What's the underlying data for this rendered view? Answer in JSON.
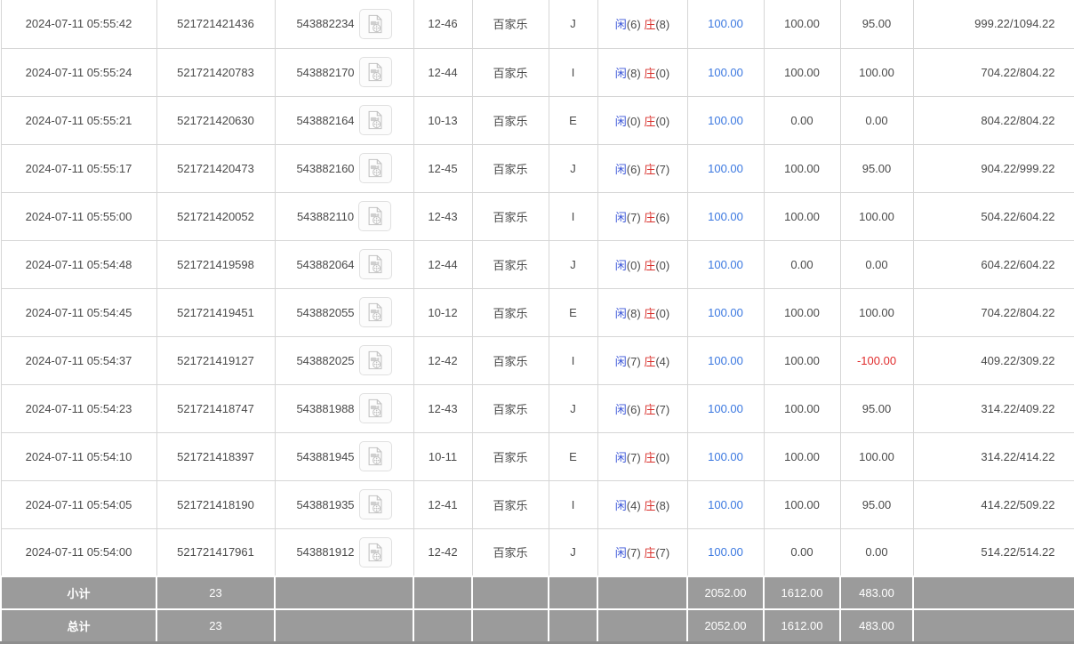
{
  "colors": {
    "text": "#4a4a4a",
    "border": "#d6d6d6",
    "bet_amount_blue": "#3b78e0",
    "player_blue": "#3b56d8",
    "banker_red": "#d9302c",
    "loss_red": "#e02b2b",
    "summary_bg": "#9b9b9b",
    "summary_text": "#ffffff"
  },
  "table": {
    "game_label": "百家乐",
    "result_labels": {
      "player": "闲",
      "banker": "庄"
    },
    "video_icon": "video-file-icon",
    "rows": [
      {
        "time": "2024-07-11 05:55:42",
        "bet_id": "521721421436",
        "round_id": "543882234",
        "table_code": "12-46",
        "game": "百家乐",
        "room": "J",
        "player_points": "(6)",
        "banker_points": "(8)",
        "bet_amount": "100.00",
        "valid_amount": "100.00",
        "win_loss": "95.00",
        "balance": "999.22/1094.22"
      },
      {
        "time": "2024-07-11 05:55:24",
        "bet_id": "521721420783",
        "round_id": "543882170",
        "table_code": "12-44",
        "game": "百家乐",
        "room": "I",
        "player_points": "(8)",
        "banker_points": "(0)",
        "bet_amount": "100.00",
        "valid_amount": "100.00",
        "win_loss": "100.00",
        "balance": "704.22/804.22"
      },
      {
        "time": "2024-07-11 05:55:21",
        "bet_id": "521721420630",
        "round_id": "543882164",
        "table_code": "10-13",
        "game": "百家乐",
        "room": "E",
        "player_points": "(0)",
        "banker_points": "(0)",
        "bet_amount": "100.00",
        "valid_amount": "0.00",
        "win_loss": "0.00",
        "balance": "804.22/804.22"
      },
      {
        "time": "2024-07-11 05:55:17",
        "bet_id": "521721420473",
        "round_id": "543882160",
        "table_code": "12-45",
        "game": "百家乐",
        "room": "J",
        "player_points": "(6)",
        "banker_points": "(7)",
        "bet_amount": "100.00",
        "valid_amount": "100.00",
        "win_loss": "95.00",
        "balance": "904.22/999.22"
      },
      {
        "time": "2024-07-11 05:55:00",
        "bet_id": "521721420052",
        "round_id": "543882110",
        "table_code": "12-43",
        "game": "百家乐",
        "room": "I",
        "player_points": "(7)",
        "banker_points": "(6)",
        "bet_amount": "100.00",
        "valid_amount": "100.00",
        "win_loss": "100.00",
        "balance": "504.22/604.22"
      },
      {
        "time": "2024-07-11 05:54:48",
        "bet_id": "521721419598",
        "round_id": "543882064",
        "table_code": "12-44",
        "game": "百家乐",
        "room": "J",
        "player_points": "(0)",
        "banker_points": "(0)",
        "bet_amount": "100.00",
        "valid_amount": "0.00",
        "win_loss": "0.00",
        "balance": "604.22/604.22"
      },
      {
        "time": "2024-07-11 05:54:45",
        "bet_id": "521721419451",
        "round_id": "543882055",
        "table_code": "10-12",
        "game": "百家乐",
        "room": "E",
        "player_points": "(8)",
        "banker_points": "(0)",
        "bet_amount": "100.00",
        "valid_amount": "100.00",
        "win_loss": "100.00",
        "balance": "704.22/804.22"
      },
      {
        "time": "2024-07-11 05:54:37",
        "bet_id": "521721419127",
        "round_id": "543882025",
        "table_code": "12-42",
        "game": "百家乐",
        "room": "I",
        "player_points": "(7)",
        "banker_points": "(4)",
        "bet_amount": "100.00",
        "valid_amount": "100.00",
        "win_loss": "-100.00",
        "balance": "409.22/309.22"
      },
      {
        "time": "2024-07-11 05:54:23",
        "bet_id": "521721418747",
        "round_id": "543881988",
        "table_code": "12-43",
        "game": "百家乐",
        "room": "J",
        "player_points": "(6)",
        "banker_points": "(7)",
        "bet_amount": "100.00",
        "valid_amount": "100.00",
        "win_loss": "95.00",
        "balance": "314.22/409.22"
      },
      {
        "time": "2024-07-11 05:54:10",
        "bet_id": "521721418397",
        "round_id": "543881945",
        "table_code": "10-11",
        "game": "百家乐",
        "room": "E",
        "player_points": "(7)",
        "banker_points": "(0)",
        "bet_amount": "100.00",
        "valid_amount": "100.00",
        "win_loss": "100.00",
        "balance": "314.22/414.22"
      },
      {
        "time": "2024-07-11 05:54:05",
        "bet_id": "521721418190",
        "round_id": "543881935",
        "table_code": "12-41",
        "game": "百家乐",
        "room": "I",
        "player_points": "(4)",
        "banker_points": "(8)",
        "bet_amount": "100.00",
        "valid_amount": "100.00",
        "win_loss": "95.00",
        "balance": "414.22/509.22"
      },
      {
        "time": "2024-07-11 05:54:00",
        "bet_id": "521721417961",
        "round_id": "543881912",
        "table_code": "12-42",
        "game": "百家乐",
        "room": "J",
        "player_points": "(7)",
        "banker_points": "(7)",
        "bet_amount": "100.00",
        "valid_amount": "0.00",
        "win_loss": "0.00",
        "balance": "514.22/514.22"
      }
    ],
    "footer": {
      "subtotal": {
        "label": "小计",
        "count": "23",
        "bet_total": "2052.00",
        "valid_total": "1612.00",
        "winloss_total": "483.00"
      },
      "total": {
        "label": "总计",
        "count": "23",
        "bet_total": "2052.00",
        "valid_total": "1612.00",
        "winloss_total": "483.00"
      }
    }
  }
}
